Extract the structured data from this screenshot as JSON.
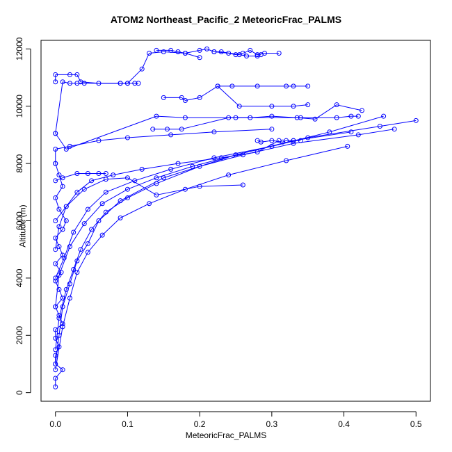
{
  "chart_data": {
    "type": "scatter",
    "title": "ATOM2 Northeast_Pacific_2 MeteoricFrac_PALMS",
    "xlabel": "MeteoricFrac_PALMS",
    "ylabel": "Altitude (m)",
    "xlim": [
      -0.02,
      0.52
    ],
    "ylim": [
      -300,
      12300
    ],
    "x_ticks": [
      "0.0",
      "0.1",
      "0.2",
      "0.3",
      "0.4",
      "0.5"
    ],
    "y_ticks": [
      "0",
      "2000",
      "4000",
      "6000",
      "8000",
      "10000",
      "12000"
    ],
    "grid": false,
    "legend": "none",
    "series_color": "#0000ff",
    "series": [
      {
        "x": [
          0.0,
          0.0,
          0.01,
          0.0,
          0.0,
          0.005,
          0.0,
          0.0,
          0.01,
          0.005,
          0.0,
          0.01,
          0.005,
          0.0,
          0.008,
          0.0,
          0.01,
          0.005,
          0.0,
          0.01,
          0.015,
          0.005,
          0.0,
          0.01,
          0.005,
          0.0
        ],
        "y": [
          200,
          500,
          800,
          1000,
          1300,
          1600,
          1900,
          2200,
          2400,
          2700,
          3000,
          3300,
          3600,
          3900,
          4200,
          4500,
          4800,
          5100,
          5400,
          5700,
          6000,
          6400,
          6800,
          7200,
          7600,
          8000
        ]
      },
      {
        "x": [
          0.0,
          0.005,
          0.01,
          0.02,
          0.03,
          0.045,
          0.06,
          0.09,
          0.15,
          0.25,
          0.35,
          0.45,
          0.5
        ],
        "y": [
          1000,
          2000,
          3000,
          3800,
          4600,
          5200,
          6000,
          6700,
          7500,
          8300,
          8900,
          9300,
          9500
        ]
      },
      {
        "x": [
          0.0,
          0.005,
          0.015,
          0.025,
          0.035,
          0.05,
          0.07,
          0.1,
          0.14,
          0.2,
          0.26,
          0.33,
          0.42,
          0.47
        ],
        "y": [
          1500,
          2600,
          3600,
          4300,
          5000,
          5700,
          6300,
          6800,
          7300,
          7900,
          8300,
          8700,
          9000,
          9200
        ]
      },
      {
        "x": [
          0.0,
          0.01,
          0.02,
          0.03,
          0.045,
          0.065,
          0.09,
          0.13,
          0.18,
          0.24,
          0.32,
          0.405
        ],
        "y": [
          800,
          2300,
          3300,
          4200,
          4900,
          5500,
          6100,
          6600,
          7100,
          7600,
          8100,
          8600
        ]
      },
      {
        "x": [
          0.0,
          0.005,
          0.02,
          0.04,
          0.065,
          0.1,
          0.14,
          0.19,
          0.25,
          0.33,
          0.41
        ],
        "y": [
          3000,
          4100,
          5100,
          5900,
          6600,
          7100,
          7500,
          7900,
          8300,
          8800,
          9100
        ]
      },
      {
        "x": [
          0.0,
          0.012,
          0.025,
          0.045,
          0.07,
          0.11,
          0.16,
          0.22,
          0.3,
          0.38,
          0.455
        ],
        "y": [
          4000,
          4700,
          5600,
          6400,
          7000,
          7400,
          7800,
          8200,
          8600,
          9100,
          9650
        ]
      },
      {
        "x": [
          0.0,
          0.015,
          0.03,
          0.05,
          0.08,
          0.12,
          0.17,
          0.23,
          0.28,
          0.31
        ],
        "y": [
          6000,
          6500,
          7000,
          7400,
          7600,
          7800,
          8000,
          8200,
          8400,
          8800
        ]
      },
      {
        "x": [
          0.0,
          0.005,
          0.015,
          0.04,
          0.07,
          0.1,
          0.14,
          0.2,
          0.26
        ],
        "y": [
          5000,
          5800,
          6500,
          7100,
          7450,
          7500,
          6900,
          7200,
          7250
        ]
      },
      {
        "x": [
          0.0,
          0.01,
          0.03,
          0.045,
          0.06,
          0.07
        ],
        "y": [
          7400,
          7500,
          7650,
          7650,
          7650,
          7650
        ]
      },
      {
        "x": [
          0.0,
          0.0,
          0.02,
          0.06,
          0.1,
          0.16,
          0.22,
          0.3
        ],
        "y": [
          8000,
          8500,
          8600,
          8800,
          8900,
          9000,
          9100,
          9200
        ]
      },
      {
        "x": [
          0.0,
          0.015,
          0.14,
          0.18,
          0.25,
          0.34,
          0.39,
          0.41,
          0.42
        ],
        "y": [
          9050,
          8500,
          9650,
          9600,
          9600,
          9600,
          9600,
          9650,
          9650
        ]
      },
      {
        "x": [
          0.135,
          0.155,
          0.175,
          0.24,
          0.27,
          0.3,
          0.335,
          0.36,
          0.39,
          0.425
        ],
        "y": [
          9200,
          9200,
          9200,
          9600,
          9600,
          9650,
          9600,
          9550,
          10050,
          9850
        ]
      },
      {
        "x": [
          0.15,
          0.175,
          0.18,
          0.2,
          0.225,
          0.255,
          0.3,
          0.33,
          0.35
        ],
        "y": [
          10300,
          10300,
          10200,
          10300,
          10700,
          10000,
          10000,
          10000,
          10050
        ]
      },
      {
        "x": [
          0.225,
          0.245,
          0.28,
          0.32,
          0.33,
          0.35
        ],
        "y": [
          10700,
          10700,
          10700,
          10700,
          10700,
          10700
        ]
      },
      {
        "x": [
          0.0,
          0.0,
          0.02,
          0.03,
          0.035,
          0.06,
          0.09,
          0.1,
          0.115,
          0.11
        ],
        "y": [
          10850,
          11100,
          11100,
          11100,
          10850,
          10800,
          10800,
          10800,
          10800,
          10800
        ]
      },
      {
        "x": [
          0.0,
          0.01,
          0.02,
          0.03,
          0.04,
          0.09,
          0.1,
          0.12,
          0.13,
          0.15,
          0.18,
          0.2
        ],
        "y": [
          9050,
          10850,
          10800,
          10800,
          10800,
          10800,
          10800,
          11300,
          11850,
          11900,
          11850,
          11700
        ]
      },
      {
        "x": [
          0.14,
          0.16,
          0.17,
          0.18,
          0.2,
          0.21,
          0.22,
          0.24,
          0.25,
          0.26,
          0.27,
          0.28,
          0.29,
          0.31
        ],
        "y": [
          11950,
          11950,
          11900,
          11850,
          11950,
          12000,
          11900,
          11850,
          11800,
          11850,
          11950,
          11800,
          11850,
          11850
        ]
      },
      {
        "x": [
          0.22,
          0.23,
          0.255,
          0.265,
          0.28,
          0.285
        ],
        "y": [
          11900,
          11900,
          11800,
          11750,
          11750,
          11800
        ]
      },
      {
        "x": [
          0.28,
          0.285,
          0.3,
          0.315,
          0.32,
          0.33,
          0.34
        ],
        "y": [
          8800,
          8750,
          8800,
          8750,
          8800,
          8800,
          8800
        ]
      }
    ]
  }
}
